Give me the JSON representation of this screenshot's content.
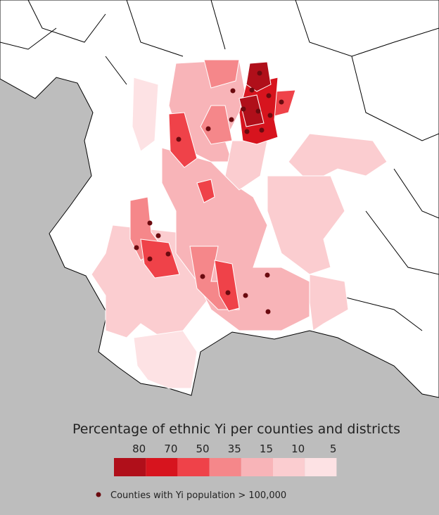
{
  "legend": {
    "title": "Percentage of ethnic Yi per counties and districts",
    "thresholds": [
      80,
      70,
      50,
      35,
      15,
      10,
      5
    ],
    "colors": [
      "#b00f1a",
      "#d7141e",
      "#ef4249",
      "#f5878a",
      "#f8b4b8",
      "#fbcdd0",
      "#fde2e4"
    ]
  },
  "dot_legend": {
    "label": "Counties with Yi population > 100,000",
    "color": "#6b0a0f"
  }
}
